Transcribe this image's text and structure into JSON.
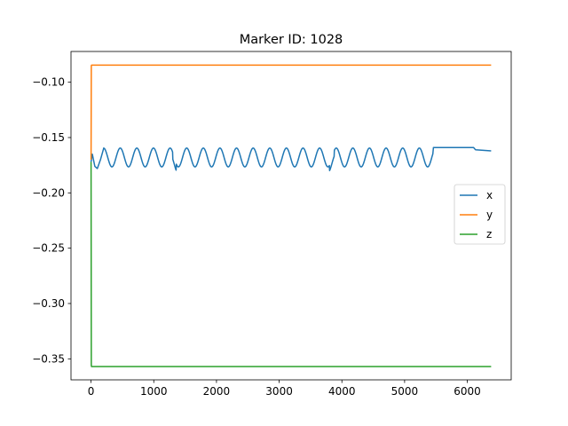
{
  "chart_data": {
    "type": "line",
    "title": "Marker ID: 1028",
    "xlabel": "",
    "ylabel": "",
    "xlim": [
      -320,
      6700
    ],
    "ylim": [
      -0.369,
      -0.0722
    ],
    "xticks": [
      0,
      1000,
      2000,
      3000,
      4000,
      5000,
      6000
    ],
    "xtick_labels": [
      "0",
      "1000",
      "2000",
      "3000",
      "4000",
      "5000",
      "6000"
    ],
    "yticks": [
      -0.35,
      -0.3,
      -0.25,
      -0.2,
      -0.15,
      -0.1
    ],
    "ytick_labels": [
      "−0.35",
      "−0.30",
      "−0.25",
      "−0.20",
      "−0.15",
      "−0.10"
    ],
    "grid": false,
    "legend_position": "center-right",
    "series": [
      {
        "name": "x",
        "color": "#1f77b4",
        "description_points": {
          "x": [
            0,
            20,
            60,
            100,
            150,
            200,
            5450,
            5460,
            6100,
            6130,
            6380
          ],
          "y": [
            -0.172,
            -0.165,
            -0.176,
            -0.178,
            -0.17,
            -0.16,
            -0.165,
            -0.159,
            -0.159,
            -0.161,
            -0.162
          ]
        },
        "oscillation": {
          "x_start": 200,
          "x_end": 5450,
          "center": -0.168,
          "amplitude": 0.0085,
          "period": 265
        }
      },
      {
        "name": "y",
        "color": "#ff7f0e",
        "x": [
          0,
          4,
          8,
          6380
        ],
        "y": [
          -0.17,
          -0.085,
          -0.0845,
          -0.0845
        ]
      },
      {
        "name": "z",
        "color": "#2ca02c",
        "x": [
          0,
          4,
          8,
          6380
        ],
        "y": [
          -0.172,
          -0.356,
          -0.357,
          -0.357
        ]
      }
    ]
  }
}
